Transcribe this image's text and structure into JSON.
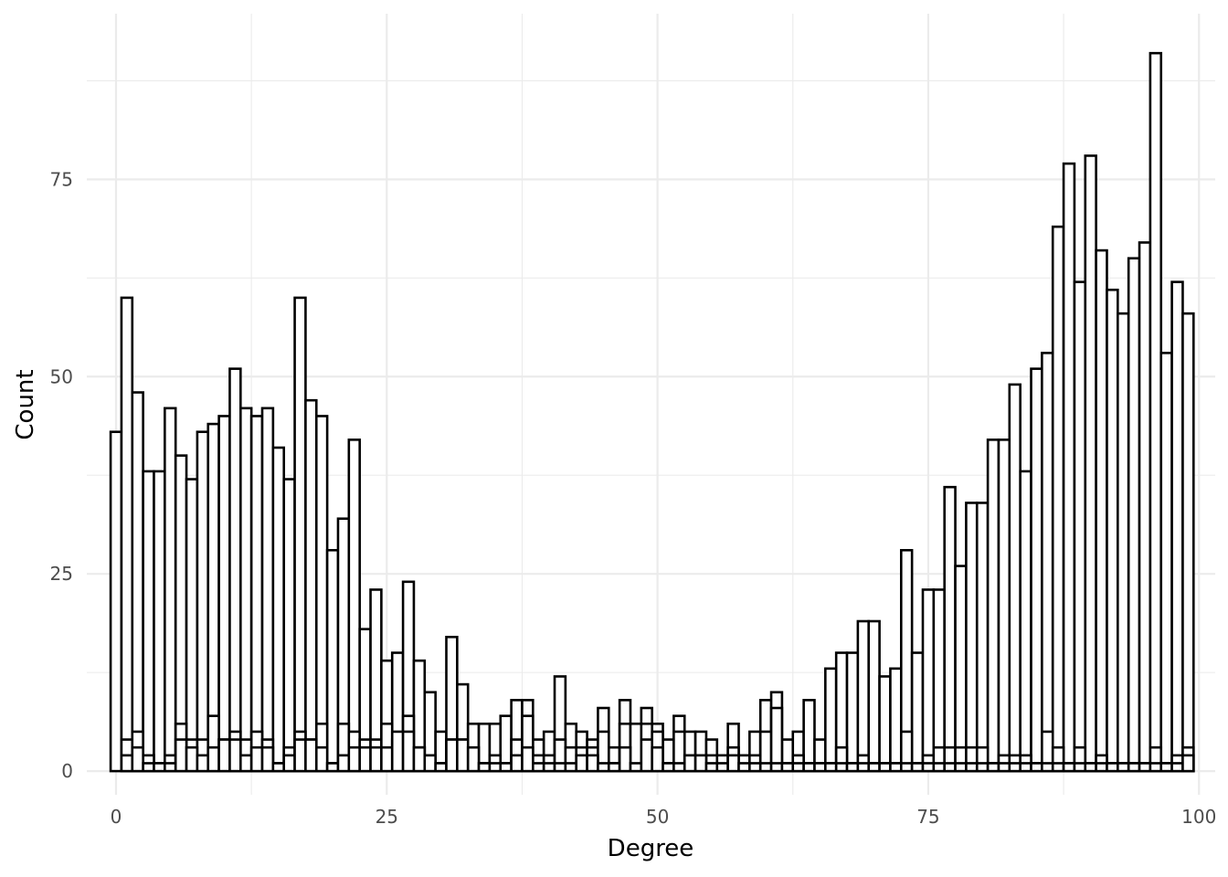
{
  "chart_data": {
    "type": "bar",
    "subtype": "histogram",
    "xlabel": "Degree",
    "ylabel": "Count",
    "xlim": [
      -2.7,
      101.5
    ],
    "ylim": [
      -3,
      96
    ],
    "x_ticks": [
      0,
      25,
      50,
      75,
      100
    ],
    "x_tick_labels": [
      "0",
      "25",
      "50",
      "75",
      "100"
    ],
    "y_ticks": [
      0,
      25,
      50,
      75
    ],
    "y_tick_labels": [
      "0",
      "25",
      "50",
      "75"
    ],
    "grid": true,
    "legend": "none",
    "bin_width": 1,
    "bin_centers": [
      0,
      1,
      2,
      3,
      4,
      5,
      6,
      7,
      8,
      9,
      10,
      11,
      12,
      13,
      14,
      15,
      16,
      17,
      18,
      19,
      20,
      21,
      22,
      23,
      24,
      25,
      26,
      27,
      28,
      29,
      30,
      31,
      32,
      33,
      34,
      35,
      36,
      37,
      38,
      39,
      40,
      41,
      42,
      43,
      44,
      45,
      46,
      47,
      48,
      49,
      50,
      51,
      52,
      53,
      54,
      55,
      56,
      57,
      58,
      59,
      60,
      61,
      62,
      63,
      64,
      65,
      66,
      67,
      68,
      69,
      70,
      71,
      72,
      73,
      74,
      75,
      76,
      77,
      78,
      79,
      80,
      81,
      82,
      83,
      84,
      85,
      86,
      87,
      88,
      89,
      90,
      91,
      92,
      93,
      94,
      95,
      96,
      97,
      98,
      99
    ],
    "series": [
      {
        "values": [
          43,
          60,
          48,
          38,
          38,
          46,
          40,
          37,
          43,
          44,
          45,
          51,
          46,
          45,
          46,
          41,
          37,
          60,
          47,
          45,
          28,
          32,
          42,
          18,
          23,
          14,
          15,
          24,
          14,
          10,
          5,
          17,
          11,
          6,
          6,
          6,
          7,
          9,
          9,
          4,
          5,
          12,
          6,
          5,
          4,
          8,
          3,
          9,
          6,
          8,
          6,
          4,
          7,
          5,
          5,
          4,
          2,
          6,
          2,
          5,
          9,
          10,
          4,
          5,
          9,
          4,
          13,
          15,
          15,
          19,
          19,
          12,
          13,
          28,
          15,
          23,
          23,
          36,
          26,
          34,
          34,
          42,
          42,
          49,
          38,
          51,
          53,
          69,
          77,
          62,
          78,
          66,
          61,
          58,
          65,
          67,
          91,
          53,
          62,
          58
        ]
      },
      {
        "values": [
          0,
          4,
          5,
          2,
          1,
          2,
          6,
          4,
          4,
          7,
          4,
          5,
          4,
          5,
          4,
          1,
          3,
          5,
          4,
          6,
          1,
          6,
          5,
          4,
          4,
          6,
          4,
          7,
          3,
          2,
          1,
          4,
          4,
          1,
          1,
          2,
          1,
          4,
          7,
          2,
          2,
          4,
          3,
          3,
          3,
          5,
          1,
          6,
          6,
          6,
          5,
          1,
          5,
          2,
          2,
          2,
          2,
          3,
          2,
          2,
          5,
          8,
          1,
          2,
          1,
          1,
          1,
          3,
          1,
          2,
          1,
          1,
          1,
          5,
          1,
          2,
          3,
          3,
          3,
          3,
          3,
          1,
          2,
          2,
          2,
          1,
          5,
          3,
          1,
          3,
          1,
          2,
          1,
          1,
          1,
          1,
          3,
          1,
          2,
          3
        ]
      },
      {
        "values": [
          0,
          2,
          3,
          1,
          1,
          1,
          4,
          3,
          2,
          3,
          4,
          4,
          2,
          3,
          3,
          1,
          2,
          4,
          4,
          3,
          1,
          2,
          3,
          3,
          3,
          3,
          5,
          5,
          3,
          2,
          1,
          4,
          4,
          3,
          1,
          1,
          1,
          2,
          3,
          1,
          1,
          1,
          1,
          2,
          2,
          1,
          1,
          3,
          1,
          4,
          3,
          1,
          1,
          2,
          2,
          1,
          1,
          2,
          1,
          1,
          1,
          1,
          1,
          1,
          1,
          1,
          1,
          1,
          1,
          1,
          1,
          1,
          1,
          1,
          1,
          1,
          1,
          1,
          1,
          1,
          1,
          1,
          1,
          1,
          1,
          1,
          1,
          1,
          1,
          1,
          1,
          1,
          1,
          1,
          1,
          1,
          1,
          1,
          1,
          2
        ]
      }
    ]
  }
}
